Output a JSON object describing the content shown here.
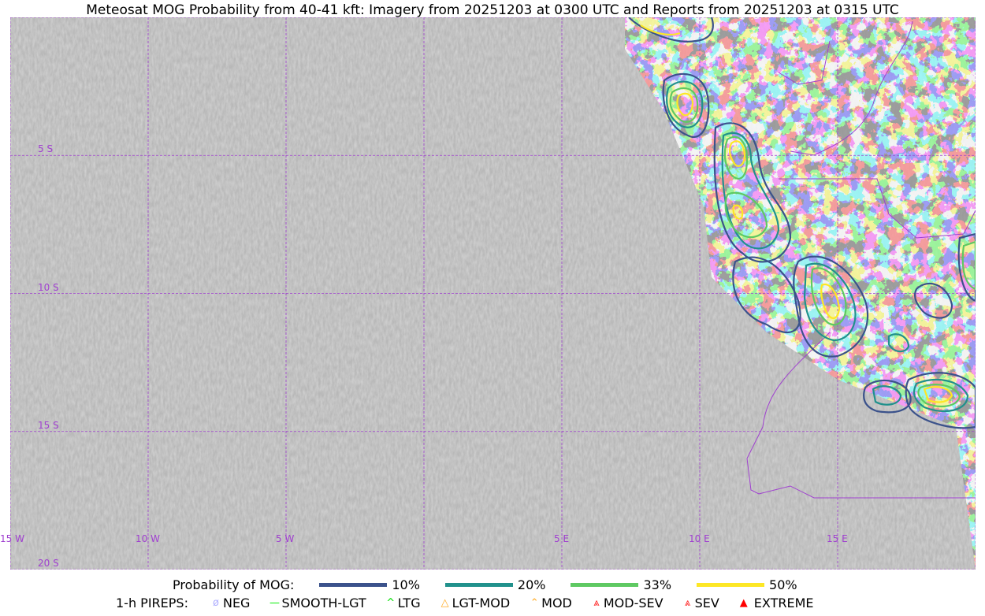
{
  "title": "Meteosat MOG Probability from 40-41 kft: Imagery from 20251203 at 0300 UTC and Reports from 20251203 at 0315 UTC",
  "map": {
    "lon_labels": [
      "15 W",
      "10 W",
      "5 W",
      "5 E",
      "10 E",
      "15 E"
    ],
    "lat_labels": [
      "5 S",
      "10 S",
      "15 S",
      "20 S"
    ],
    "grid_color": "#a040d0",
    "contour_colors": {
      "10%": "#3b528b",
      "20%": "#21918c",
      "33%": "#5ec962",
      "50%": "#fde725"
    }
  },
  "legend": {
    "prob_title": "Probability of MOG:",
    "prob_items": [
      {
        "label": "10%",
        "color": "#3b528b"
      },
      {
        "label": "20%",
        "color": "#21918c"
      },
      {
        "label": "33%",
        "color": "#5ec962"
      },
      {
        "label": "50%",
        "color": "#fde725"
      }
    ],
    "pirep_title": "1-h PIREPS:",
    "pirep_items": [
      {
        "label": "NEG",
        "icon": "neg-circle-icon",
        "color": "#b0b0ff"
      },
      {
        "label": "SMOOTH-LGT",
        "icon": "line-icon",
        "color": "#00ee00"
      },
      {
        "label": "LTG",
        "icon": "caret-icon",
        "color": "#00dd00"
      },
      {
        "label": "LGT-MOD",
        "icon": "triangle-bar-icon",
        "color": "#ffaa22"
      },
      {
        "label": "MOD",
        "icon": "caret-bar-icon",
        "color": "#ffaa22"
      },
      {
        "label": "MOD-SEV",
        "icon": "double-caret-bar-icon",
        "color": "#ff2222"
      },
      {
        "label": "SEV",
        "icon": "double-caret-icon",
        "color": "#ff2222"
      },
      {
        "label": "EXTREME",
        "icon": "filled-triangle-icon",
        "color": "#ff0000"
      }
    ]
  }
}
